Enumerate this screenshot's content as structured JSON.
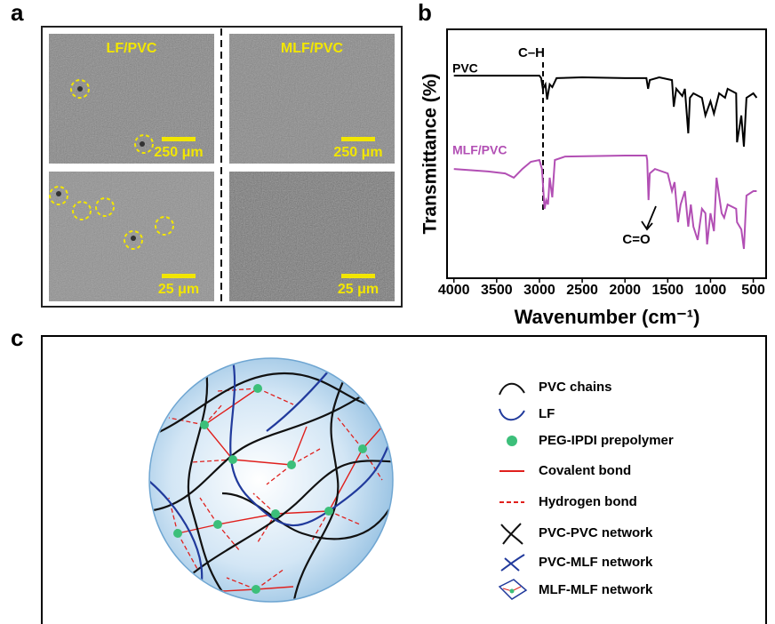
{
  "panel_a": {
    "label": "a",
    "columns": [
      "LF/PVC",
      "MLF/PVC"
    ],
    "scale_bars": [
      "250 μm",
      "250 μm",
      "25 μm",
      "25 μm"
    ]
  },
  "panel_b": {
    "label": "b"
  },
  "chart_data": {
    "type": "line",
    "xlabel": "Wavenumber (cm⁻¹)",
    "ylabel": "Transmittance (%)",
    "xlim": [
      4080,
      350
    ],
    "xticks": [
      4000,
      3500,
      3000,
      2500,
      2000,
      1500,
      1000,
      500
    ],
    "ylim": [
      0,
      100
    ],
    "annotations": [
      "C–H",
      "C=O"
    ],
    "series": [
      {
        "name": "PVC",
        "color": "#000000",
        "x": [
          4000,
          3000,
          2980,
          2960,
          2930,
          2910,
          2880,
          2850,
          2800,
          2500,
          2000,
          1750,
          1730,
          1710,
          1600,
          1450,
          1430,
          1400,
          1330,
          1300,
          1260,
          1240,
          1200,
          1100,
          1060,
          1000,
          960,
          900,
          830,
          800,
          700,
          690,
          640,
          610,
          580,
          500,
          460
        ],
        "values": [
          81.4,
          81.4,
          80.4,
          76.1,
          77.9,
          71.8,
          77.9,
          76.8,
          80.4,
          80.7,
          80.4,
          80.4,
          76.1,
          79.6,
          80.7,
          79.6,
          68.9,
          76.1,
          73.2,
          76.1,
          58.2,
          72.5,
          74.3,
          72.5,
          65.4,
          71.1,
          66.1,
          74.3,
          72.5,
          76.1,
          74.3,
          54.6,
          65.4,
          52.9,
          72.5,
          74.3,
          72.5
        ]
      },
      {
        "name": "MLF/PVC",
        "color": "#b24fb4",
        "x": [
          4000,
          3600,
          3400,
          3300,
          3200,
          3100,
          3000,
          2970,
          2940,
          2920,
          2900,
          2880,
          2850,
          2820,
          2700,
          2000,
          1750,
          1740,
          1725,
          1710,
          1650,
          1500,
          1450,
          1420,
          1380,
          1350,
          1300,
          1260,
          1230,
          1200,
          1150,
          1100,
          1060,
          1040,
          1000,
          960,
          930,
          870,
          840,
          800,
          700,
          690,
          640,
          610,
          580,
          500,
          460
        ],
        "values": [
          43.9,
          42.9,
          42.1,
          40.4,
          43.9,
          46.8,
          47.5,
          43.9,
          27.9,
          31.4,
          29.6,
          40.4,
          32.5,
          47.5,
          48.9,
          49.3,
          49.3,
          47.5,
          31.4,
          42.1,
          43.9,
          42.1,
          35.0,
          38.6,
          22.5,
          29.6,
          35.0,
          20.7,
          29.6,
          20.7,
          15.4,
          27.9,
          26.1,
          13.6,
          26.1,
          18.9,
          40.4,
          26.1,
          24.3,
          29.6,
          27.9,
          22.5,
          19.6,
          11.8,
          33.2,
          35.0,
          35.0
        ]
      }
    ]
  },
  "panel_c": {
    "label": "c",
    "legend": [
      "PVC chains",
      "LF",
      "PEG-IPDI prepolymer",
      "Covalent bond",
      "Hydrogen bond",
      "PVC-PVC network",
      "PVC-MLF network",
      "MLF-MLF network"
    ]
  }
}
